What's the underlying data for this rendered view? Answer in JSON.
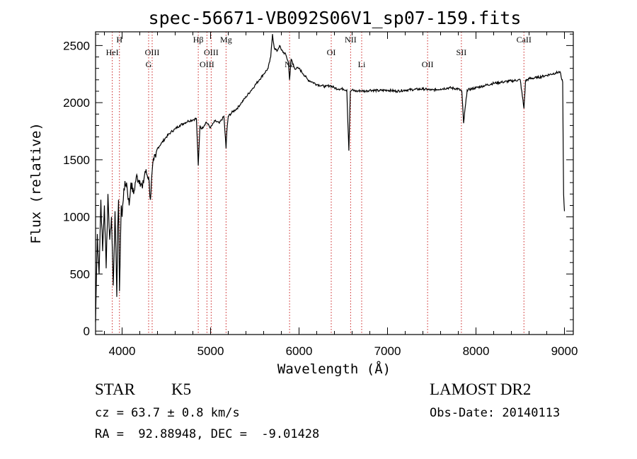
{
  "chart_data": {
    "type": "line",
    "title": "spec-56671-VB092S06V1_sp07-159.fits",
    "xlabel": "Wavelength (Å)",
    "ylabel": "Flux (relative)",
    "xlim": [
      3700,
      9100
    ],
    "ylim": [
      -30,
      2620
    ],
    "xticks": [
      4000,
      5000,
      6000,
      7000,
      8000,
      9000
    ],
    "yticks": [
      0,
      500,
      1000,
      1500,
      2000,
      2500
    ],
    "line_color": "#000000",
    "marker_color": "#cc2222",
    "series": [
      {
        "x": [
          3700,
          3720,
          3740,
          3760,
          3780,
          3800,
          3820,
          3840,
          3860,
          3880,
          3900,
          3920,
          3940,
          3950,
          3960,
          3970,
          3990,
          4000,
          4020,
          4050,
          4080,
          4100,
          4130,
          4160,
          4200,
          4230,
          4260,
          4300,
          4320,
          4340,
          4360,
          4380,
          4400,
          4450,
          4500,
          4550,
          4600,
          4650,
          4700,
          4750,
          4800,
          4840,
          4861,
          4880,
          4900,
          4950,
          5000,
          5050,
          5100,
          5150,
          5167,
          5175,
          5184,
          5200,
          5250,
          5300,
          5350,
          5400,
          5450,
          5500,
          5550,
          5600,
          5650,
          5680,
          5700,
          5720,
          5750,
          5780,
          5800,
          5850,
          5880,
          5893,
          5910,
          5950,
          6000,
          6050,
          6100,
          6150,
          6200,
          6250,
          6300,
          6350,
          6400,
          6450,
          6500,
          6540,
          6563,
          6580,
          6600,
          6650,
          6700,
          6750,
          6800,
          6900,
          7000,
          7100,
          7200,
          7300,
          7400,
          7500,
          7600,
          7700,
          7800,
          7840,
          7860,
          7900,
          8000,
          8100,
          8200,
          8300,
          8400,
          8500,
          8542,
          8560,
          8600,
          8700,
          8800,
          8900,
          8950,
          8970,
          8980,
          8990,
          9000
        ],
        "y": [
          80,
          850,
          500,
          1150,
          700,
          1100,
          550,
          1200,
          800,
          1000,
          400,
          1050,
          300,
          900,
          1150,
          350,
          1100,
          1000,
          1250,
          1300,
          1100,
          1300,
          1200,
          1350,
          1320,
          1250,
          1400,
          1350,
          1150,
          1400,
          1500,
          1520,
          1600,
          1650,
          1700,
          1740,
          1770,
          1800,
          1820,
          1840,
          1850,
          1860,
          1450,
          1800,
          1770,
          1830,
          1780,
          1840,
          1820,
          1880,
          1700,
          1600,
          1750,
          1880,
          1920,
          1950,
          2000,
          2050,
          2100,
          2150,
          2200,
          2250,
          2300,
          2400,
          2600,
          2480,
          2450,
          2500,
          2460,
          2420,
          2350,
          2200,
          2380,
          2300,
          2300,
          2250,
          2200,
          2180,
          2160,
          2150,
          2140,
          2150,
          2130,
          2120,
          2120,
          2110,
          1580,
          2100,
          2110,
          2100,
          2105,
          2100,
          2110,
          2105,
          2110,
          2100,
          2110,
          2115,
          2120,
          2110,
          2120,
          2130,
          2120,
          2100,
          1820,
          2110,
          2130,
          2150,
          2170,
          2180,
          2190,
          2200,
          1950,
          2190,
          2210,
          2220,
          2240,
          2260,
          2270,
          2200,
          2180,
          1200,
          1050
        ]
      }
    ],
    "lines": [
      {
        "x": 3889,
        "label": "HeI",
        "row": 1
      },
      {
        "x": 3970,
        "label": "H",
        "row": 0
      },
      {
        "x": 4300,
        "label": "G",
        "row": 2
      },
      {
        "x": 4340,
        "label": "OIII",
        "row": 1
      },
      {
        "x": 4861,
        "label": "Hβ",
        "row": 0
      },
      {
        "x": 4959,
        "label": "OIII",
        "row": 2
      },
      {
        "x": 5007,
        "label": "OIII",
        "row": 1
      },
      {
        "x": 5175,
        "label": "Mg",
        "row": 0
      },
      {
        "x": 5893,
        "label": "Na",
        "row": 2
      },
      {
        "x": 6364,
        "label": "OI",
        "row": 1
      },
      {
        "x": 6583,
        "label": "NII",
        "row": 0
      },
      {
        "x": 6708,
        "label": "Li",
        "row": 2
      },
      {
        "x": 7453,
        "label": "OII",
        "row": 2
      },
      {
        "x": 7835,
        "label": "SII",
        "row": 1
      },
      {
        "x": 8542,
        "label": "CaII",
        "row": 0
      }
    ]
  },
  "info": {
    "object_class": "STAR",
    "subclass": "K5",
    "survey": "LAMOST DR2",
    "cz": "cz = 63.7 ± 0.8 km/s",
    "obs_date": "Obs-Date: 20140113",
    "coords": "RA =  92.88948, DEC =  -9.01428"
  }
}
